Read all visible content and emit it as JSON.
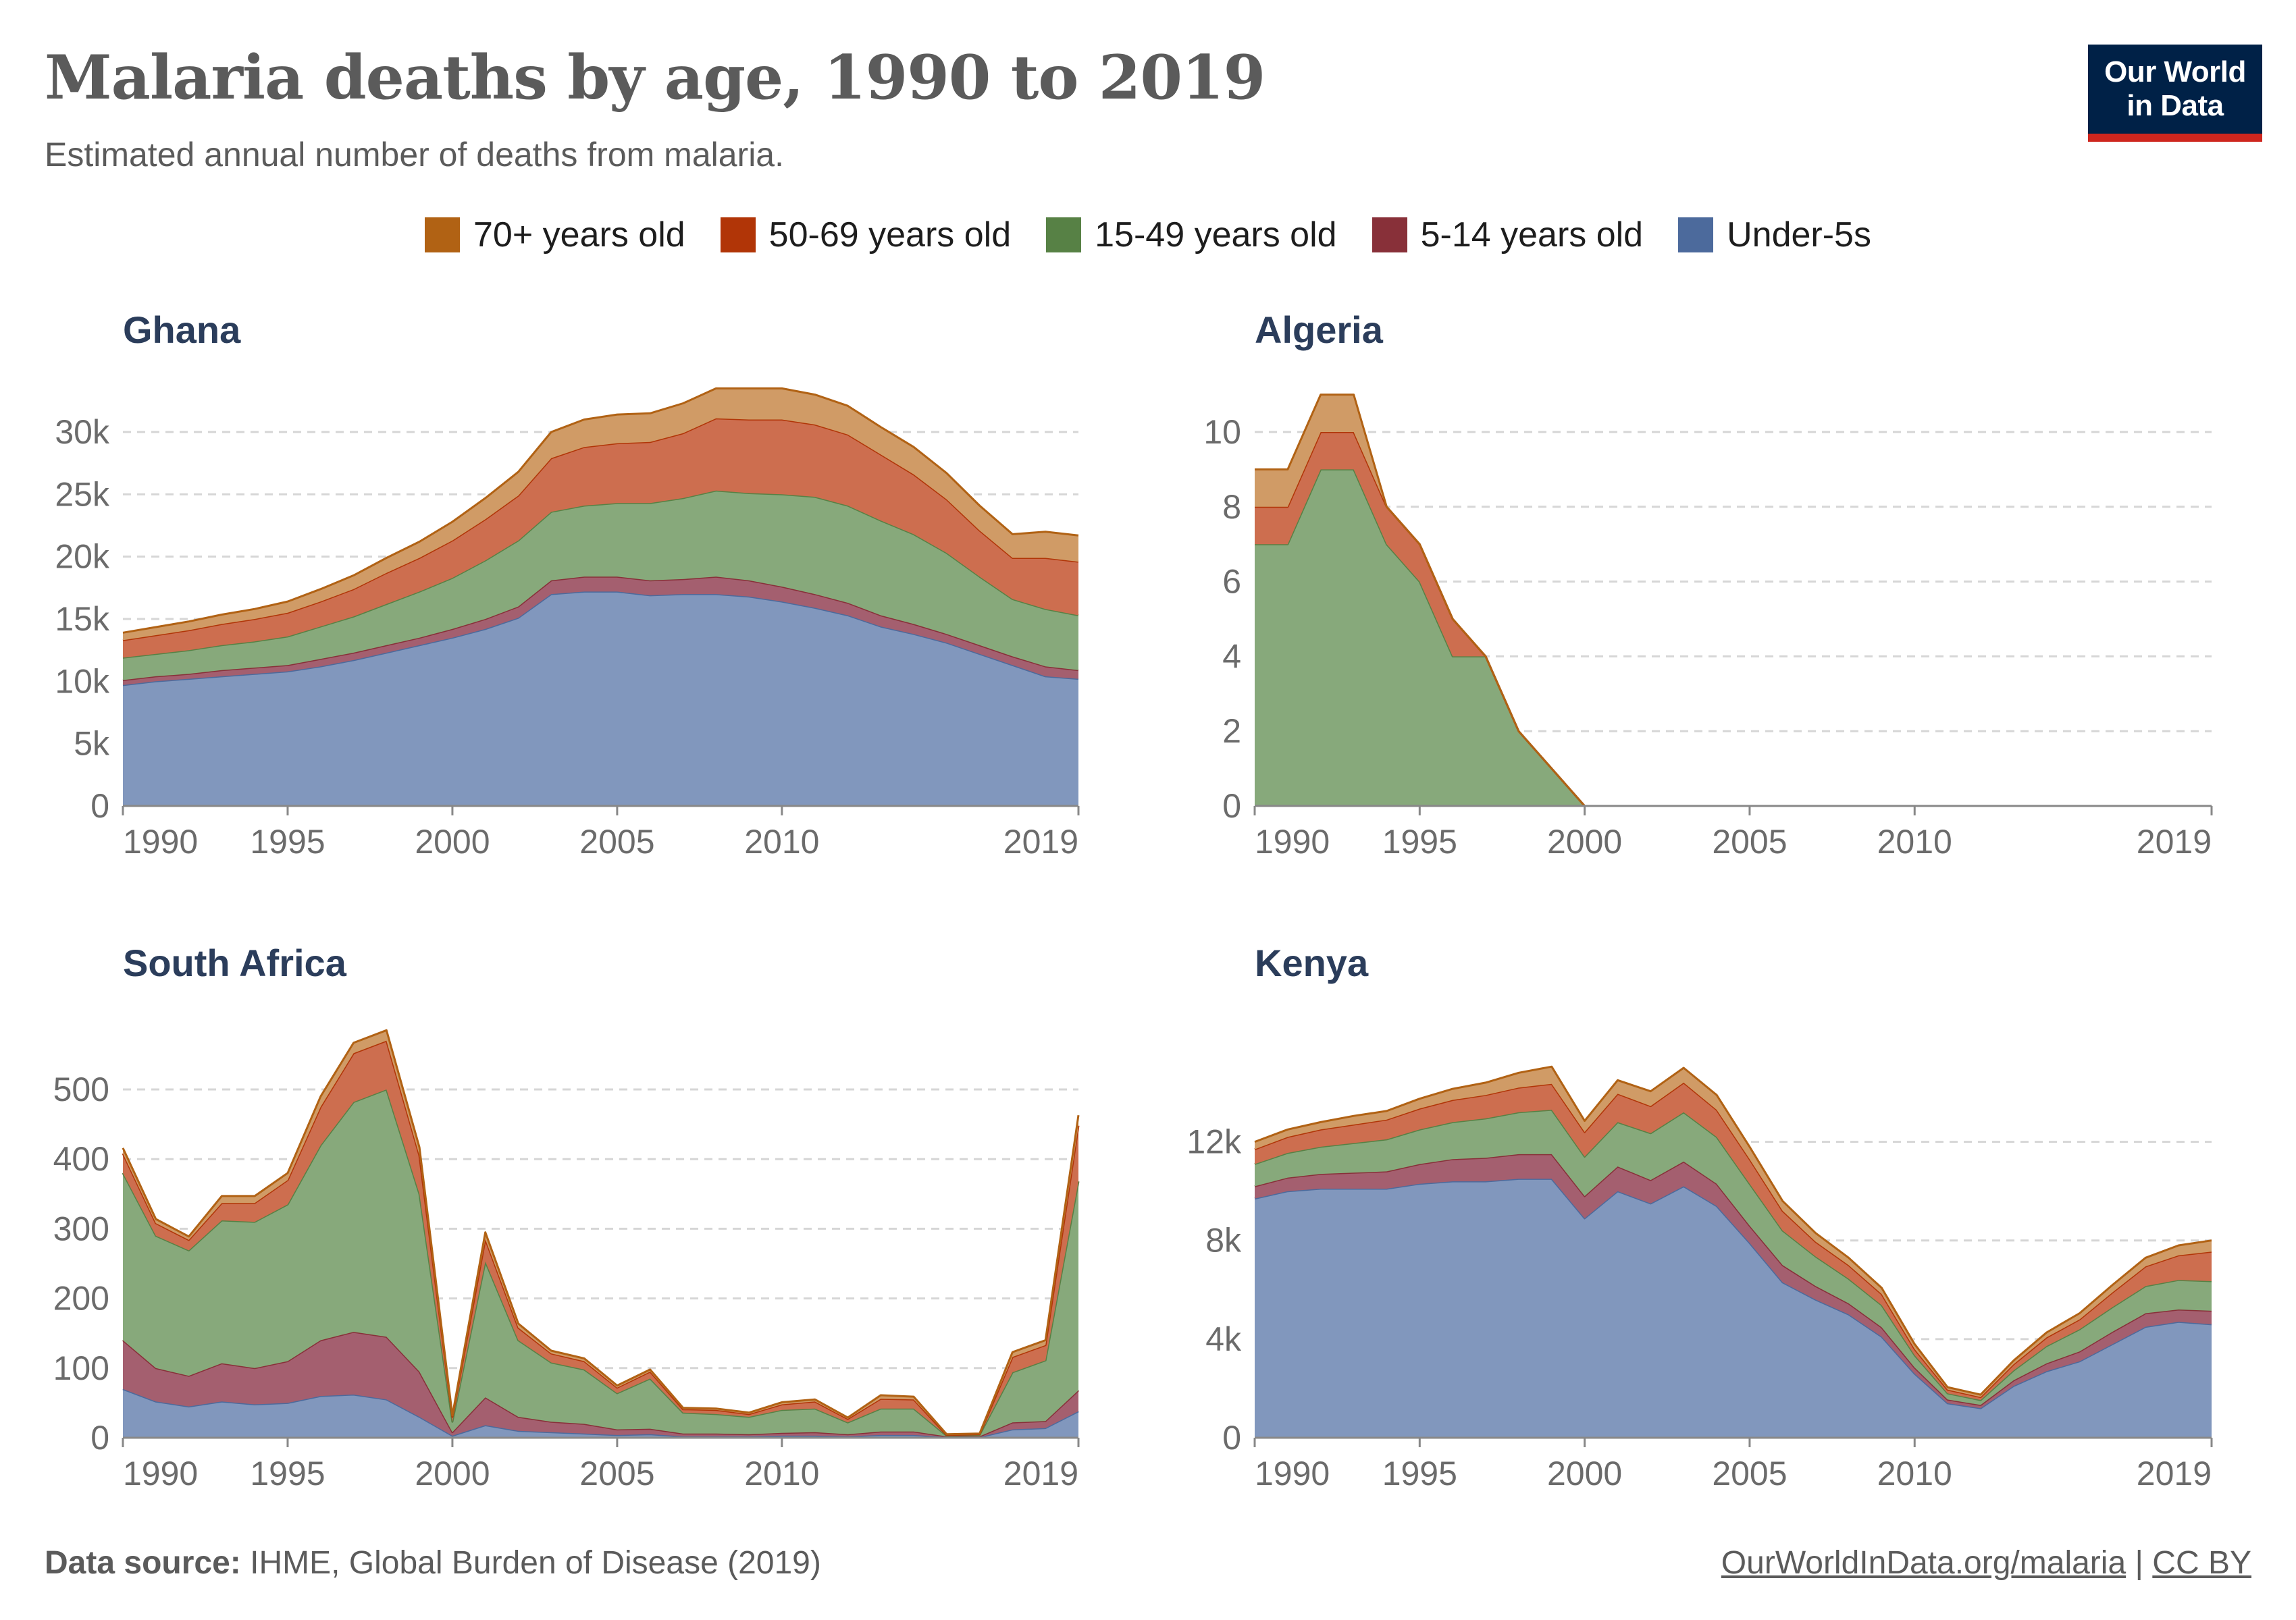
{
  "header": {
    "title": "Malaria deaths by age, 1990 to 2019",
    "subtitle": "Estimated annual number of deaths from malaria."
  },
  "logo": {
    "line1": "Our World",
    "line2": "in Data"
  },
  "colors": {
    "under5": "#8197bd",
    "age5_14": "#a45f6f",
    "age15_49": "#87a97b",
    "age50_69": "#cd6e4f",
    "age70": "#d09b66",
    "under5_line": "#4c6a9c",
    "age5_14_line": "#883039",
    "age15_49_line": "#578145",
    "age50_69_line": "#b13507",
    "age70_line": "#b16214"
  },
  "legend": [
    {
      "label": "70+ years old",
      "color": "#b16214"
    },
    {
      "label": "50-69 years old",
      "color": "#b13507"
    },
    {
      "label": "15-49 years old",
      "color": "#578145"
    },
    {
      "label": "5-14 years old",
      "color": "#883039"
    },
    {
      "label": "Under-5s",
      "color": "#4c6a9c"
    }
  ],
  "footer": {
    "source_label": "Data source:",
    "source_text": "IHME, Global Burden of Disease (2019)",
    "link_text": "OurWorldInData.org/malaria",
    "separator": "|",
    "license": "CC BY"
  },
  "chart_data": [
    {
      "type": "area",
      "title": "Ghana",
      "x": [
        1990,
        1991,
        1992,
        1993,
        1994,
        1995,
        1996,
        1997,
        1998,
        1999,
        2000,
        2001,
        2002,
        2003,
        2004,
        2005,
        2006,
        2007,
        2008,
        2009,
        2010,
        2011,
        2012,
        2013,
        2014,
        2015,
        2016,
        2017,
        2018,
        2019
      ],
      "series": [
        {
          "name": "Under-5s",
          "values": [
            9700,
            10000,
            10200,
            10400,
            10600,
            10800,
            11200,
            11700,
            12300,
            12900,
            13500,
            14200,
            15100,
            17000,
            17200,
            17200,
            16900,
            17000,
            17000,
            16800,
            16400,
            15900,
            15300,
            14400,
            13800,
            13100,
            12200,
            11300,
            10400,
            10200
          ]
        },
        {
          "name": "5-14 years old",
          "values": [
            400,
            400,
            400,
            500,
            500,
            500,
            600,
            600,
            600,
            600,
            700,
            800,
            900,
            1100,
            1200,
            1200,
            1200,
            1200,
            1400,
            1300,
            1200,
            1100,
            1000,
            900,
            800,
            700,
            700,
            700,
            800,
            700
          ]
        },
        {
          "name": "15-49 years old",
          "values": [
            1800,
            1800,
            1900,
            2000,
            2100,
            2300,
            2600,
            2900,
            3300,
            3700,
            4100,
            4700,
            5300,
            5500,
            5700,
            5900,
            6200,
            6500,
            6900,
            7000,
            7400,
            7800,
            7800,
            7600,
            7200,
            6500,
            5500,
            4600,
            4600,
            4400
          ]
        },
        {
          "name": "50-69 years old",
          "values": [
            1400,
            1500,
            1600,
            1700,
            1800,
            1900,
            2000,
            2200,
            2500,
            2700,
            3000,
            3300,
            3600,
            4300,
            4700,
            4800,
            4900,
            5200,
            5800,
            5900,
            6000,
            5800,
            5700,
            5300,
            4800,
            4300,
            3700,
            3300,
            4100,
            4300
          ]
        },
        {
          "name": "70+ years old",
          "values": [
            600,
            650,
            700,
            750,
            800,
            900,
            1000,
            1100,
            1200,
            1300,
            1500,
            1700,
            1900,
            2100,
            2200,
            2300,
            2300,
            2400,
            2400,
            2500,
            2500,
            2400,
            2300,
            2200,
            2200,
            2100,
            2000,
            1900,
            2100,
            2100
          ]
        }
      ],
      "yticks": [
        0,
        5000,
        10000,
        15000,
        20000,
        25000,
        30000
      ],
      "ytick_labels": [
        "0",
        "5k",
        "10k",
        "15k",
        "20k",
        "25k",
        "30k"
      ],
      "ylim": [
        0,
        30000
      ],
      "xticks": [
        1990,
        1995,
        2000,
        2005,
        2010,
        2019
      ]
    },
    {
      "type": "area",
      "title": "Algeria",
      "x": [
        1990,
        1991,
        1992,
        1993,
        1994,
        1995,
        1996,
        1997,
        1998,
        1999,
        2000,
        2001,
        2002,
        2003,
        2004,
        2005,
        2006,
        2007,
        2008,
        2009,
        2010,
        2011,
        2012,
        2013,
        2014,
        2015,
        2016,
        2017,
        2018,
        2019
      ],
      "series": [
        {
          "name": "Under-5s",
          "values": [
            0,
            0,
            0,
            0,
            0,
            0,
            0,
            0,
            0,
            0,
            0,
            0,
            0,
            0,
            0,
            0,
            0,
            0,
            0,
            0,
            0,
            0,
            0,
            0,
            0,
            0,
            0,
            0,
            0,
            0
          ]
        },
        {
          "name": "5-14 years old",
          "values": [
            0,
            0,
            0,
            0,
            0,
            0,
            0,
            0,
            0,
            0,
            0,
            0,
            0,
            0,
            0,
            0,
            0,
            0,
            0,
            0,
            0,
            0,
            0,
            0,
            0,
            0,
            0,
            0,
            0,
            0
          ]
        },
        {
          "name": "15-49 years old",
          "values": [
            7,
            7,
            9,
            9,
            7,
            6,
            4,
            4,
            2,
            1,
            0,
            0,
            0,
            0,
            0,
            0,
            0,
            0,
            0,
            0,
            0,
            0,
            0,
            0,
            0,
            0,
            0,
            0,
            0,
            0
          ]
        },
        {
          "name": "50-69 years old",
          "values": [
            1,
            1,
            1,
            1,
            1,
            1,
            1,
            0,
            0,
            0,
            0,
            0,
            0,
            0,
            0,
            0,
            0,
            0,
            0,
            0,
            0,
            0,
            0,
            0,
            0,
            0,
            0,
            0,
            0,
            0
          ]
        },
        {
          "name": "70+ years old",
          "values": [
            1,
            1,
            1,
            1,
            0,
            0,
            0,
            0,
            0,
            0,
            0,
            0,
            0,
            0,
            0,
            0,
            0,
            0,
            0,
            0,
            0,
            0,
            0,
            0,
            0,
            0,
            0,
            0,
            0,
            0
          ]
        }
      ],
      "yticks": [
        0,
        2,
        4,
        6,
        8,
        10
      ],
      "ytick_labels": [
        "0",
        "2",
        "4",
        "6",
        "8",
        "10"
      ],
      "ylim": [
        0,
        10
      ],
      "xticks": [
        1990,
        1995,
        2000,
        2005,
        2010,
        2019
      ]
    },
    {
      "type": "area",
      "title": "South Africa",
      "x": [
        1990,
        1991,
        1992,
        1993,
        1994,
        1995,
        1996,
        1997,
        1998,
        1999,
        2000,
        2001,
        2002,
        2003,
        2004,
        2005,
        2006,
        2007,
        2008,
        2009,
        2010,
        2011,
        2012,
        2013,
        2014,
        2015,
        2016,
        2017,
        2018,
        2019
      ],
      "series": [
        {
          "name": "Under-5s",
          "values": [
            70,
            52,
            45,
            52,
            48,
            50,
            60,
            62,
            55,
            30,
            3,
            18,
            10,
            8,
            6,
            4,
            5,
            2,
            2,
            2,
            3,
            3,
            2,
            4,
            4,
            1,
            1,
            12,
            14,
            38
          ]
        },
        {
          "name": "5-14 years old",
          "values": [
            70,
            48,
            44,
            55,
            52,
            60,
            80,
            90,
            90,
            65,
            5,
            40,
            20,
            15,
            14,
            8,
            8,
            4,
            4,
            3,
            4,
            5,
            3,
            5,
            5,
            1,
            1,
            10,
            10,
            30
          ]
        },
        {
          "name": "15-49 years old",
          "values": [
            240,
            190,
            180,
            205,
            210,
            225,
            280,
            330,
            355,
            255,
            15,
            195,
            110,
            85,
            78,
            52,
            72,
            30,
            28,
            25,
            33,
            34,
            17,
            33,
            33,
            1,
            2,
            72,
            87,
            300
          ]
        },
        {
          "name": "50-69 years old",
          "values": [
            28,
            18,
            15,
            25,
            27,
            35,
            55,
            70,
            70,
            55,
            7,
            32,
            18,
            13,
            12,
            8,
            10,
            5,
            6,
            4,
            8,
            10,
            5,
            14,
            13,
            1,
            1,
            22,
            22,
            80
          ]
        },
        {
          "name": "70+ years old",
          "values": [
            8,
            6,
            5,
            10,
            10,
            10,
            15,
            15,
            15,
            12,
            2,
            10,
            6,
            4,
            4,
            3,
            3,
            2,
            2,
            2,
            3,
            3,
            2,
            5,
            4,
            1,
            1,
            7,
            7,
            15
          ]
        }
      ],
      "yticks": [
        0,
        100,
        200,
        300,
        400,
        500
      ],
      "ytick_labels": [
        "0",
        "100",
        "200",
        "300",
        "400",
        "500"
      ],
      "ylim": [
        0,
        500
      ],
      "xticks": [
        1990,
        1995,
        2000,
        2005,
        2010,
        2019
      ]
    },
    {
      "type": "area",
      "title": "Kenya",
      "x": [
        1990,
        1991,
        1992,
        1993,
        1994,
        1995,
        1996,
        1997,
        1998,
        1999,
        2000,
        2001,
        2002,
        2003,
        2004,
        2005,
        2006,
        2007,
        2008,
        2009,
        2010,
        2011,
        2012,
        2013,
        2014,
        2015,
        2016,
        2017,
        2018,
        2019
      ],
      "series": [
        {
          "name": "Under-5s",
          "values": [
            9700,
            10000,
            10100,
            10100,
            10100,
            10300,
            10400,
            10400,
            10500,
            10500,
            8900,
            10000,
            9500,
            10200,
            9400,
            7900,
            6300,
            5600,
            5000,
            4100,
            2600,
            1400,
            1200,
            2100,
            2700,
            3100,
            3800,
            4500,
            4700,
            4600
          ]
        },
        {
          "name": "5-14 years old",
          "values": [
            500,
            550,
            600,
            650,
            700,
            800,
            900,
            950,
            1000,
            1000,
            900,
            1000,
            950,
            1000,
            900,
            700,
            700,
            550,
            450,
            380,
            250,
            150,
            130,
            230,
            320,
            400,
            500,
            550,
            500,
            550
          ]
        },
        {
          "name": "15-49 years old",
          "values": [
            900,
            1000,
            1100,
            1200,
            1300,
            1400,
            1500,
            1600,
            1700,
            1800,
            1600,
            1800,
            1900,
            2000,
            1900,
            1700,
            1400,
            1200,
            1000,
            900,
            500,
            250,
            200,
            400,
            700,
            900,
            1000,
            1100,
            1200,
            1200
          ]
        },
        {
          "name": "50-69 years old",
          "values": [
            600,
            650,
            700,
            750,
            800,
            850,
            900,
            950,
            1000,
            1050,
            1000,
            1150,
            1100,
            1200,
            1100,
            1000,
            800,
            600,
            550,
            450,
            250,
            150,
            120,
            250,
            350,
            400,
            600,
            800,
            1000,
            1200
          ]
        },
        {
          "name": "70+ years old",
          "values": [
            300,
            300,
            300,
            350,
            350,
            400,
            450,
            500,
            600,
            700,
            450,
            550,
            600,
            600,
            600,
            500,
            400,
            350,
            300,
            250,
            200,
            100,
            100,
            150,
            200,
            250,
            300,
            350,
            400,
            450
          ]
        }
      ],
      "yticks": [
        0,
        4000,
        8000,
        12000
      ],
      "ytick_labels": [
        "0",
        "4k",
        "8k",
        "12k"
      ],
      "ylim": [
        0,
        15000
      ],
      "xticks": [
        1990,
        1995,
        2000,
        2005,
        2010,
        2019
      ]
    }
  ]
}
